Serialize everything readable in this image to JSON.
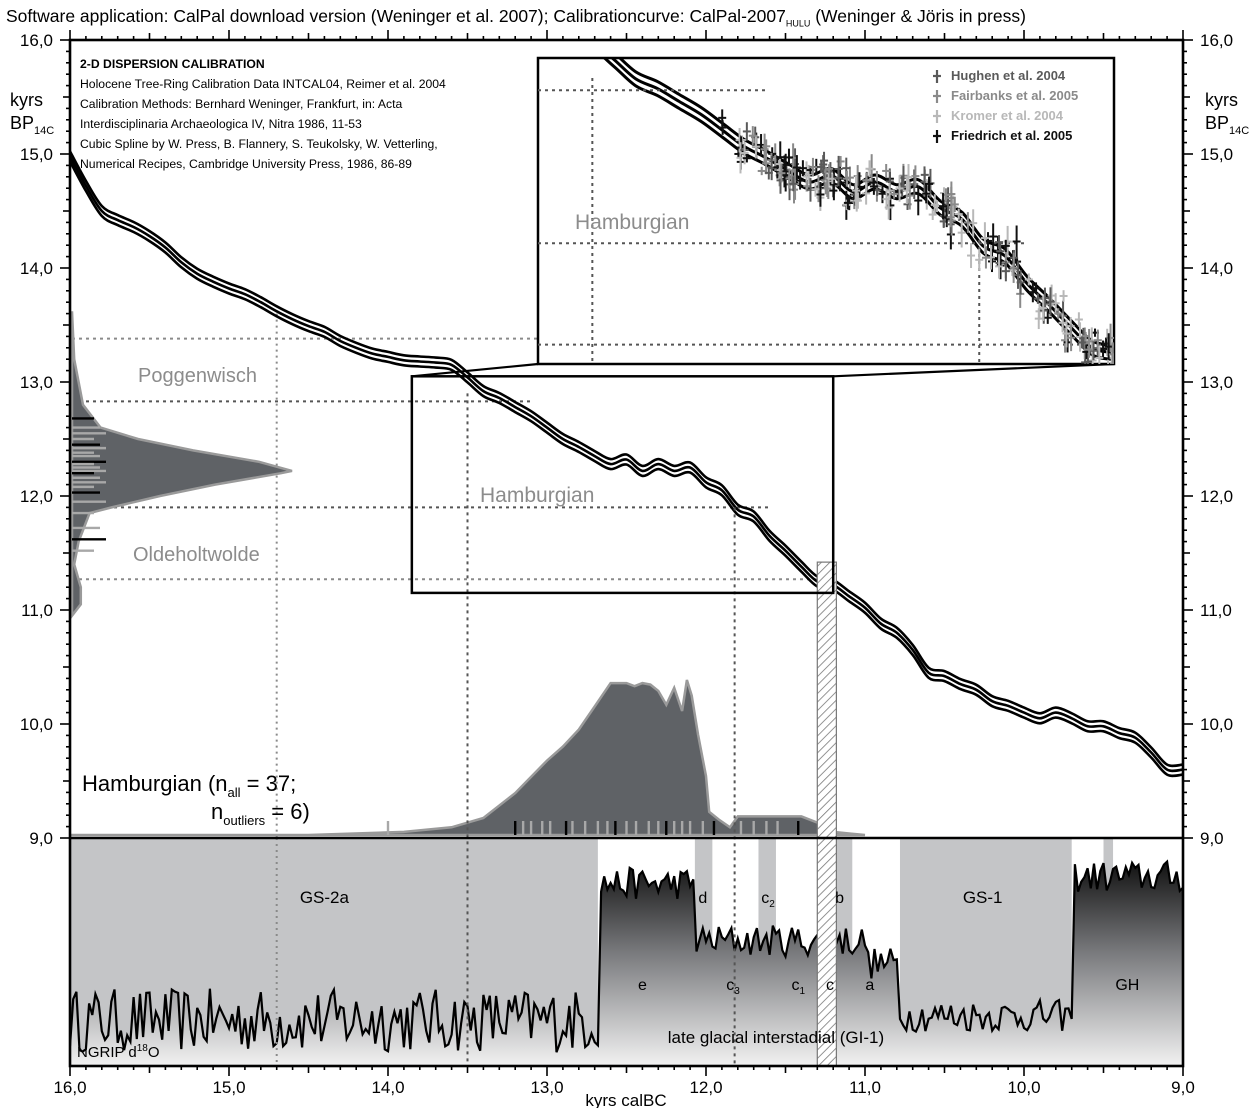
{
  "page": {
    "title": "Software application: CalPal download version (Weninger et al. 2007); Calibrationcurve: CalPal-2007",
    "title_sub": "HULU",
    "title_tail": " (Weninger & Jöris in press)"
  },
  "notes": {
    "heading": "2-D DISPERSION CALIBRATION",
    "lines": [
      "Holocene Tree-Ring Calibration Data INTCAL04, Reimer et al. 2004",
      "Calibration Methods: Bernhard Weninger, Frankfurt, in: Acta",
      "Interdisciplinaria Archaeologica IV, Nitra 1986, 11-53",
      "Cubic Spline by W. Press, B. Flannery, S. Teukolsky, W. Vetterling,",
      "Numerical Recipes, Cambridge University Press, 1986, 86-89"
    ]
  },
  "chart_data": {
    "type": "line",
    "colors": {
      "curve": "#000000",
      "fill_dark": "#5f6266",
      "guide": "#555555",
      "grey_text": "#8c8c8c",
      "stadial_band": "#c4c5c7"
    },
    "axes": {
      "x_label": "kyrs calBC",
      "x_range": [
        16.0,
        9.0
      ],
      "x_ticks": [
        "16,0",
        "15,0",
        "14,0",
        "13,0",
        "12,0",
        "11,0",
        "10,0",
        "9,0"
      ],
      "y_label": "kyrs",
      "y_label_main": "BP",
      "y_label_sub": "14C",
      "y_range": [
        9.0,
        16.0
      ],
      "y_ticks": [
        "9,0",
        "10,0",
        "11,0",
        "12,0",
        "13,0",
        "14,0",
        "15,0",
        "16,0"
      ]
    },
    "calibration_curve": {
      "x_calBC": [
        16.0,
        15.9,
        15.8,
        15.7,
        15.6,
        15.5,
        15.4,
        15.3,
        15.2,
        15.1,
        15.0,
        14.9,
        14.8,
        14.7,
        14.6,
        14.5,
        14.4,
        14.3,
        14.2,
        14.1,
        14.0,
        13.9,
        13.8,
        13.7,
        13.6,
        13.5,
        13.4,
        13.3,
        13.2,
        13.1,
        13.0,
        12.9,
        12.8,
        12.7,
        12.6,
        12.5,
        12.4,
        12.3,
        12.2,
        12.1,
        12.0,
        11.9,
        11.8,
        11.7,
        11.6,
        11.5,
        11.4,
        11.3,
        11.2,
        11.1,
        11.0,
        10.9,
        10.8,
        10.7,
        10.6,
        10.5,
        10.4,
        10.3,
        10.2,
        10.1,
        10.0,
        9.9,
        9.8,
        9.7,
        9.6,
        9.5,
        9.4,
        9.3,
        9.2,
        9.1,
        9.0
      ],
      "y_kyrsBP": [
        14.98,
        14.72,
        14.5,
        14.42,
        14.36,
        14.28,
        14.18,
        14.05,
        13.95,
        13.88,
        13.82,
        13.77,
        13.7,
        13.62,
        13.55,
        13.49,
        13.44,
        13.36,
        13.3,
        13.25,
        13.22,
        13.19,
        13.18,
        13.17,
        13.15,
        13.04,
        12.92,
        12.86,
        12.78,
        12.7,
        12.6,
        12.5,
        12.43,
        12.35,
        12.28,
        12.32,
        12.22,
        12.28,
        12.22,
        12.25,
        12.12,
        12.05,
        11.88,
        11.82,
        11.65,
        11.52,
        11.38,
        11.25,
        11.22,
        11.12,
        11.02,
        10.88,
        10.8,
        10.65,
        10.45,
        10.42,
        10.35,
        10.3,
        10.2,
        10.16,
        10.1,
        10.05,
        10.1,
        10.05,
        9.98,
        9.98,
        9.92,
        9.88,
        9.75,
        9.6,
        9.6
      ]
    },
    "c14_density": {
      "y_kyrsBP": [
        13.62,
        13.2,
        13.0,
        12.8,
        12.6,
        12.5,
        12.4,
        12.3,
        12.22,
        12.2,
        12.1,
        12.0,
        11.9,
        11.85,
        11.6,
        11.4,
        11.2,
        11.05,
        10.95
      ],
      "density": [
        0.0,
        0.01,
        0.03,
        0.05,
        0.13,
        0.3,
        0.55,
        0.85,
        1.0,
        0.95,
        0.65,
        0.4,
        0.18,
        0.08,
        0.03,
        0.01,
        0.04,
        0.04,
        0.0
      ]
    },
    "calendric_density": {
      "x_calBC": [
        16.0,
        14.5,
        13.9,
        13.6,
        13.4,
        13.2,
        13.0,
        12.9,
        12.8,
        12.7,
        12.6,
        12.5,
        12.45,
        12.4,
        12.35,
        12.3,
        12.25,
        12.2,
        12.15,
        12.12,
        12.09,
        12.05,
        12.0,
        11.98,
        11.92,
        11.85,
        11.8,
        11.4,
        11.3,
        11.2,
        11.1,
        11.0
      ],
      "density": [
        0.0,
        0.0,
        0.02,
        0.05,
        0.11,
        0.27,
        0.48,
        0.57,
        0.68,
        0.83,
        0.98,
        0.98,
        0.96,
        0.98,
        0.97,
        0.93,
        0.84,
        0.95,
        0.8,
        1.0,
        0.9,
        0.65,
        0.38,
        0.15,
        0.1,
        0.05,
        0.12,
        0.12,
        0.08,
        0.02,
        0.01,
        0.0
      ]
    },
    "calendric_date_ticks_calBC": [
      13.2,
      13.15,
      13.1,
      13.03,
      12.98,
      12.88,
      12.84,
      12.76,
      12.68,
      12.62,
      12.57,
      12.5,
      12.44,
      12.36,
      12.3,
      12.25,
      12.2,
      12.15,
      12.1,
      12.02,
      11.95,
      11.78,
      11.7,
      11.62,
      11.55,
      11.42,
      14.0
    ],
    "c14_date_ticks_kyrsBP": [
      12.68,
      12.6,
      12.55,
      12.5,
      12.45,
      12.42,
      12.38,
      12.35,
      12.3,
      12.28,
      12.25,
      12.22,
      12.2,
      12.16,
      12.12,
      12.08,
      12.03,
      11.95,
      11.85,
      11.72,
      11.62,
      11.52
    ],
    "guides": {
      "x_calBC": [
        14.7,
        13.5,
        11.82
      ],
      "y_kyrsBP": [
        13.38,
        12.83,
        11.9,
        11.27
      ]
    },
    "site_labels": [
      {
        "text": "Poggenwisch",
        "y": 13.1
      },
      {
        "text": "Hamburgian",
        "x": 12.58,
        "y": 12.0
      },
      {
        "text": "Oldeholtwolde",
        "y": 11.55
      }
    ],
    "main_annotation": {
      "line1_a": "Hamburgian (n",
      "line1_sub": "all",
      "line1_b": " = 37;",
      "line2_a": "n",
      "line2_sub": "outliers",
      "line2_b": " = 6)"
    },
    "inset": {
      "label": "Hamburgian",
      "zoom_box": {
        "x_calBC": [
          13.85,
          11.2
        ],
        "y_kyrsBP": [
          11.15,
          13.05
        ]
      },
      "legend": [
        {
          "name": "Hughen et al. 2004",
          "color": "#5a5a5a"
        },
        {
          "name": "Fairbanks et al. 2005",
          "color": "#8a8a8a"
        },
        {
          "name": "Kromer et al. 2004",
          "color": "#b8b8b8"
        },
        {
          "name": "Friedrich et al. 2005",
          "color": "#111111"
        }
      ]
    },
    "hatch_band_calBC": [
      11.3,
      11.18
    ],
    "ngrip": {
      "label": "NGRIP d",
      "label_sup": "18",
      "label_tail": "O",
      "stadial_bands_calBC": [
        [
          16.0,
          12.68
        ],
        [
          12.07,
          11.96
        ],
        [
          11.67,
          11.56
        ],
        [
          11.28,
          11.08
        ],
        [
          10.78,
          9.7
        ],
        [
          9.5,
          9.44
        ]
      ],
      "onset_calBC": 12.68,
      "pre_level": 0.2,
      "post_levels": [
        {
          "x": [
            12.68,
            12.07
          ],
          "level": 0.8
        },
        {
          "x": [
            12.07,
            11.0
          ],
          "level": 0.55
        },
        {
          "x": [
            11.0,
            10.8
          ],
          "level": 0.45
        },
        {
          "x": [
            10.8,
            9.7
          ],
          "level": 0.22
        },
        {
          "x": [
            9.7,
            9.0
          ],
          "level": 0.83
        }
      ],
      "labels": [
        {
          "text": "GS-2a",
          "x": 14.4,
          "row": "top"
        },
        {
          "text": "d",
          "x": 12.02,
          "row": "top"
        },
        {
          "text": "c",
          "sub": "2",
          "x": 11.61,
          "row": "top"
        },
        {
          "text": "b",
          "x": 11.16,
          "row": "top"
        },
        {
          "text": "GS-1",
          "x": 10.26,
          "row": "top"
        },
        {
          "text": "e",
          "x": 12.4,
          "row": "mid"
        },
        {
          "text": "c",
          "sub": "3",
          "x": 11.83,
          "row": "mid"
        },
        {
          "text": "c",
          "sub": "1",
          "x": 11.42,
          "row": "mid"
        },
        {
          "text": "c",
          "x": 11.22,
          "row": "mid"
        },
        {
          "text": "a",
          "x": 10.97,
          "row": "mid"
        },
        {
          "text": "GH",
          "x": 9.35,
          "row": "mid"
        },
        {
          "text": "late glacial interstadial (GI-1)",
          "x": 11.56,
          "row": "bottom"
        }
      ]
    }
  }
}
